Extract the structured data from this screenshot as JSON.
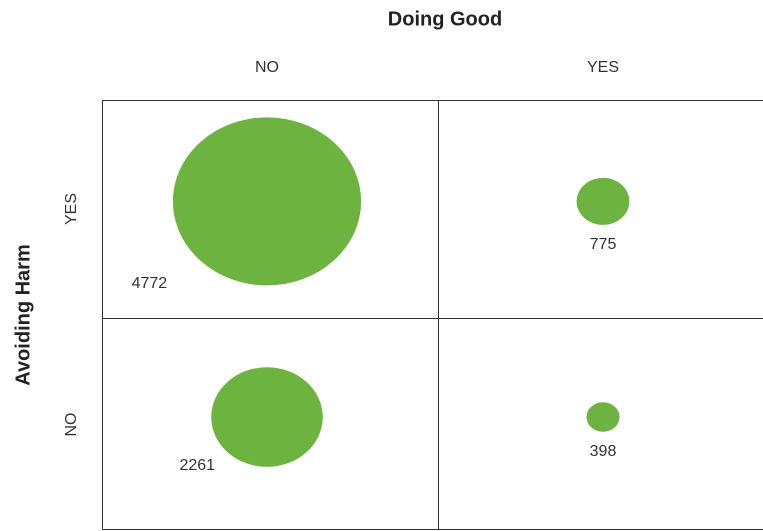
{
  "chart_data": {
    "type": "bubble-matrix",
    "x_label": "Doing Good",
    "y_label": "Avoiding Harm",
    "x_categories": [
      "NO",
      "YES"
    ],
    "y_categories": [
      "YES",
      "NO"
    ],
    "values": [
      [
        4772,
        775
      ],
      [
        2261,
        398
      ]
    ],
    "color": "#6db33f"
  }
}
